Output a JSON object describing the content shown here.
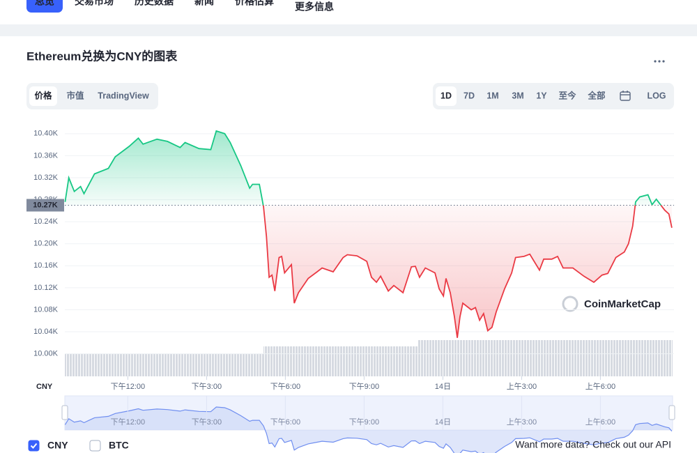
{
  "nav": {
    "tabs": [
      "总览",
      "交易市场",
      "历史数据",
      "新闻",
      "价格估算",
      "更多信息"
    ],
    "active": 0
  },
  "card": {
    "title": "Ethereum兑换为CNY的图表",
    "view_tabs": [
      "价格",
      "市值",
      "TradingView"
    ],
    "active_view": 0,
    "range_tabs": [
      "1D",
      "7D",
      "1M",
      "3M",
      "1Y",
      "至今",
      "全部"
    ],
    "active_range": 0,
    "log_label": "LOG"
  },
  "chart_data": {
    "type": "line",
    "x": [
      9.61,
      9.75,
      9.96,
      10.2,
      10.33,
      10.73,
      11.26,
      11.52,
      12.05,
      12.4,
      12.58,
      13.11,
      13.51,
      13.99,
      14.18,
      14.71,
      15.16,
      15.37,
      15.69,
      15.9,
      16.3,
      16.64,
      16.75,
      17.01,
      17.17,
      17.28,
      17.38,
      17.49,
      17.6,
      17.76,
      17.86,
      17.97,
      18.23,
      18.34,
      18.5,
      18.87,
      19.21,
      19.4,
      19.82,
      20.2,
      20.36,
      20.73,
      21.1,
      21.28,
      21.47,
      21.63,
      21.92,
      22.13,
      22.48,
      22.8,
      22.95,
      23.11,
      23.33,
      23.7,
      23.86,
      24.02,
      24.12,
      24.28,
      24.44,
      24.55,
      24.65,
      24.76,
      25.08,
      25.24,
      25.4,
      25.55,
      25.71,
      25.87,
      26.03,
      26.35,
      26.62,
      26.77,
      27.09,
      27.31,
      27.68,
      27.84,
      28.15,
      28.37,
      28.58,
      28.95,
      29.37,
      29.75,
      30.06,
      30.28,
      30.59,
      30.91,
      31.07,
      31.23,
      31.34,
      31.5,
      31.81,
      31.97,
      32.13,
      32.45,
      32.61,
      32.72
    ],
    "series": [
      {
        "name": "CNY",
        "values": [
          10276,
          10320,
          10295,
          10304,
          10291,
          10327,
          10337,
          10358,
          10377,
          10392,
          10381,
          10390,
          10386,
          10375,
          10384,
          10373,
          10371,
          10405,
          10400,
          10384,
          10342,
          10301,
          10308,
          10308,
          10267,
          10213,
          10139,
          10143,
          10114,
          10175,
          10177,
          10147,
          10162,
          10092,
          10111,
          10137,
          10149,
          10156,
          10149,
          10175,
          10180,
          10178,
          10168,
          10139,
          10130,
          10141,
          10114,
          10124,
          10111,
          10158,
          10159,
          10139,
          10156,
          10147,
          10118,
          10105,
          10137,
          10111,
          10067,
          10029,
          10067,
          10092,
          10080,
          10084,
          10061,
          10073,
          10042,
          10048,
          10076,
          10118,
          10147,
          10175,
          10177,
          10181,
          10152,
          10172,
          10172,
          10177,
          10156,
          10156,
          10141,
          10130,
          10143,
          10146,
          10175,
          10185,
          10200,
          10232,
          10276,
          10285,
          10289,
          10271,
          10281,
          10261,
          10254,
          10229
        ]
      }
    ],
    "reference": {
      "value": 10270,
      "label": "10.27K"
    },
    "colors": {
      "above": "#16c784",
      "below": "#ea3943"
    },
    "xlim": [
      9.6,
      32.75
    ],
    "xticks": [
      {
        "value": 12,
        "label": "下午12:00"
      },
      {
        "value": 15,
        "label": "下午3:00"
      },
      {
        "value": 18,
        "label": "下午6:00"
      },
      {
        "value": 21,
        "label": "下午9:00"
      },
      {
        "value": 24,
        "label": "14日"
      },
      {
        "value": 27,
        "label": "上午3:00"
      },
      {
        "value": 30,
        "label": "上午6:00"
      }
    ],
    "ylim": [
      9959,
      10415
    ],
    "yticks": [
      {
        "value": 10000,
        "label": "10.00K"
      },
      {
        "value": 10040,
        "label": "10.04K"
      },
      {
        "value": 10080,
        "label": "10.08K"
      },
      {
        "value": 10120,
        "label": "10.12K"
      },
      {
        "value": 10160,
        "label": "10.16K"
      },
      {
        "value": 10200,
        "label": "10.20K"
      },
      {
        "value": 10240,
        "label": "10.24K"
      },
      {
        "value": 10280,
        "label": "10.28K"
      },
      {
        "value": 10320,
        "label": "10.32K"
      },
      {
        "value": 10360,
        "label": "10.36K"
      },
      {
        "value": 10400,
        "label": "10.40K"
      }
    ],
    "grid": true,
    "y_axis_label": "CNY",
    "watermark": "CoinMarketCap"
  },
  "toggles": [
    {
      "label": "CNY",
      "checked": true
    },
    {
      "label": "BTC",
      "checked": false
    }
  ],
  "footer": {
    "prompt": "Want more data?",
    "link": "Check out our API"
  }
}
